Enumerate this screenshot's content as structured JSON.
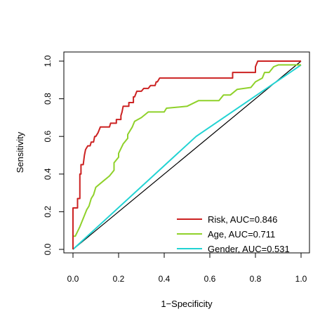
{
  "chart_data": {
    "type": "line",
    "title": "",
    "xlabel": "1−Specificity",
    "ylabel": "Sensitivity",
    "xlim": [
      0,
      1
    ],
    "ylim": [
      0,
      1
    ],
    "x_ticks": [
      "0.0",
      "0.2",
      "0.4",
      "0.6",
      "0.8",
      "1.0"
    ],
    "y_ticks": [
      "0.0",
      "0.2",
      "0.4",
      "0.6",
      "0.8",
      "1.0"
    ],
    "grid": false,
    "legend_position": "bottom-right",
    "reference_line": {
      "from": [
        0,
        0
      ],
      "to": [
        1,
        1
      ],
      "color": "#000000"
    },
    "series": [
      {
        "name": "Risk, AUC=0.846",
        "color": "#cc2222",
        "points": [
          [
            0.0,
            0.0
          ],
          [
            0.0,
            0.22
          ],
          [
            0.02,
            0.22
          ],
          [
            0.02,
            0.27
          ],
          [
            0.03,
            0.27
          ],
          [
            0.03,
            0.4
          ],
          [
            0.035,
            0.4
          ],
          [
            0.035,
            0.45
          ],
          [
            0.045,
            0.45
          ],
          [
            0.05,
            0.5
          ],
          [
            0.055,
            0.53
          ],
          [
            0.065,
            0.55
          ],
          [
            0.075,
            0.55
          ],
          [
            0.08,
            0.57
          ],
          [
            0.09,
            0.57
          ],
          [
            0.095,
            0.6
          ],
          [
            0.1,
            0.6
          ],
          [
            0.11,
            0.62
          ],
          [
            0.12,
            0.65
          ],
          [
            0.16,
            0.65
          ],
          [
            0.165,
            0.67
          ],
          [
            0.19,
            0.67
          ],
          [
            0.19,
            0.69
          ],
          [
            0.21,
            0.69
          ],
          [
            0.21,
            0.71
          ],
          [
            0.215,
            0.73
          ],
          [
            0.22,
            0.76
          ],
          [
            0.245,
            0.76
          ],
          [
            0.245,
            0.78
          ],
          [
            0.265,
            0.78
          ],
          [
            0.265,
            0.81
          ],
          [
            0.27,
            0.81
          ],
          [
            0.28,
            0.84
          ],
          [
            0.3,
            0.84
          ],
          [
            0.31,
            0.855
          ],
          [
            0.33,
            0.855
          ],
          [
            0.34,
            0.87
          ],
          [
            0.36,
            0.87
          ],
          [
            0.365,
            0.89
          ],
          [
            0.37,
            0.89
          ],
          [
            0.38,
            0.91
          ],
          [
            0.7,
            0.91
          ],
          [
            0.7,
            0.94
          ],
          [
            0.8,
            0.94
          ],
          [
            0.8,
            0.97
          ],
          [
            0.81,
            1.0
          ],
          [
            1.0,
            1.0
          ]
        ]
      },
      {
        "name": "Age, AUC=0.711",
        "color": "#8fd12a",
        "points": [
          [
            0.0,
            0.0
          ],
          [
            0.0,
            0.07
          ],
          [
            0.01,
            0.07
          ],
          [
            0.03,
            0.12
          ],
          [
            0.05,
            0.18
          ],
          [
            0.06,
            0.21
          ],
          [
            0.07,
            0.23
          ],
          [
            0.08,
            0.27
          ],
          [
            0.09,
            0.29
          ],
          [
            0.1,
            0.33
          ],
          [
            0.12,
            0.35
          ],
          [
            0.14,
            0.37
          ],
          [
            0.16,
            0.39
          ],
          [
            0.18,
            0.42
          ],
          [
            0.18,
            0.46
          ],
          [
            0.2,
            0.49
          ],
          [
            0.2,
            0.51
          ],
          [
            0.22,
            0.56
          ],
          [
            0.24,
            0.59
          ],
          [
            0.24,
            0.61
          ],
          [
            0.26,
            0.65
          ],
          [
            0.27,
            0.68
          ],
          [
            0.3,
            0.7
          ],
          [
            0.33,
            0.73
          ],
          [
            0.4,
            0.73
          ],
          [
            0.41,
            0.75
          ],
          [
            0.5,
            0.76
          ],
          [
            0.55,
            0.79
          ],
          [
            0.64,
            0.79
          ],
          [
            0.66,
            0.82
          ],
          [
            0.69,
            0.82
          ],
          [
            0.72,
            0.85
          ],
          [
            0.78,
            0.86
          ],
          [
            0.8,
            0.89
          ],
          [
            0.83,
            0.91
          ],
          [
            0.84,
            0.94
          ],
          [
            0.86,
            0.94
          ],
          [
            0.88,
            0.97
          ],
          [
            0.9,
            0.98
          ],
          [
            1.0,
            0.98
          ]
        ]
      },
      {
        "name": "Gender, AUC=0.531",
        "color": "#22d3d3",
        "points": [
          [
            0.0,
            0.0
          ],
          [
            0.54,
            0.6
          ],
          [
            1.0,
            0.98
          ]
        ]
      }
    ]
  }
}
